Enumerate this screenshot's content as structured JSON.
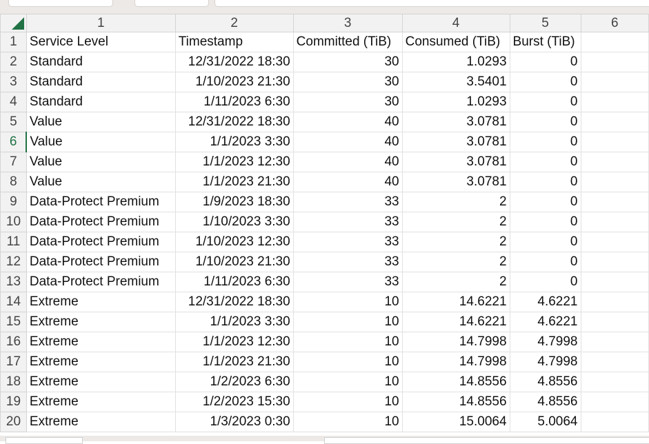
{
  "columns": [
    "1",
    "2",
    "3",
    "4",
    "5",
    "6"
  ],
  "rows": [
    [
      "Service Level",
      "Timestamp",
      "Committed (TiB)",
      "Consumed (TiB)",
      "Burst (TiB)"
    ],
    [
      "Standard",
      "12/31/2022 18:30",
      "30",
      "1.0293",
      "0"
    ],
    [
      "Standard",
      "1/10/2023 21:30",
      "30",
      "3.5401",
      "0"
    ],
    [
      "Standard",
      "1/11/2023 6:30",
      "30",
      "1.0293",
      "0"
    ],
    [
      "Value",
      "12/31/2022 18:30",
      "40",
      "3.0781",
      "0"
    ],
    [
      "Value",
      "1/1/2023 3:30",
      "40",
      "3.0781",
      "0"
    ],
    [
      "Value",
      "1/1/2023 12:30",
      "40",
      "3.0781",
      "0"
    ],
    [
      "Value",
      "1/1/2023 21:30",
      "40",
      "3.0781",
      "0"
    ],
    [
      "Data-Protect Premium",
      "1/9/2023 18:30",
      "33",
      "2",
      "0"
    ],
    [
      "Data-Protect Premium",
      "1/10/2023 3:30",
      "33",
      "2",
      "0"
    ],
    [
      "Data-Protect Premium",
      "1/10/2023 12:30",
      "33",
      "2",
      "0"
    ],
    [
      "Data-Protect Premium",
      "1/10/2023 21:30",
      "33",
      "2",
      "0"
    ],
    [
      "Data-Protect Premium",
      "1/11/2023 6:30",
      "33",
      "2",
      "0"
    ],
    [
      "Extreme",
      "12/31/2022 18:30",
      "10",
      "14.6221",
      "4.6221"
    ],
    [
      "Extreme",
      "1/1/2023 3:30",
      "10",
      "14.6221",
      "4.6221"
    ],
    [
      "Extreme",
      "1/1/2023 12:30",
      "10",
      "14.7998",
      "4.7998"
    ],
    [
      "Extreme",
      "1/1/2023 21:30",
      "10",
      "14.7998",
      "4.7998"
    ],
    [
      "Extreme",
      "1/2/2023 6:30",
      "10",
      "14.8556",
      "4.8556"
    ],
    [
      "Extreme",
      "1/2/2023 15:30",
      "10",
      "14.8556",
      "4.8556"
    ],
    [
      "Extreme",
      "1/3/2023 0:30",
      "10",
      "15.0064",
      "5.0064"
    ]
  ],
  "selected_row": 6,
  "accent": "#217346"
}
